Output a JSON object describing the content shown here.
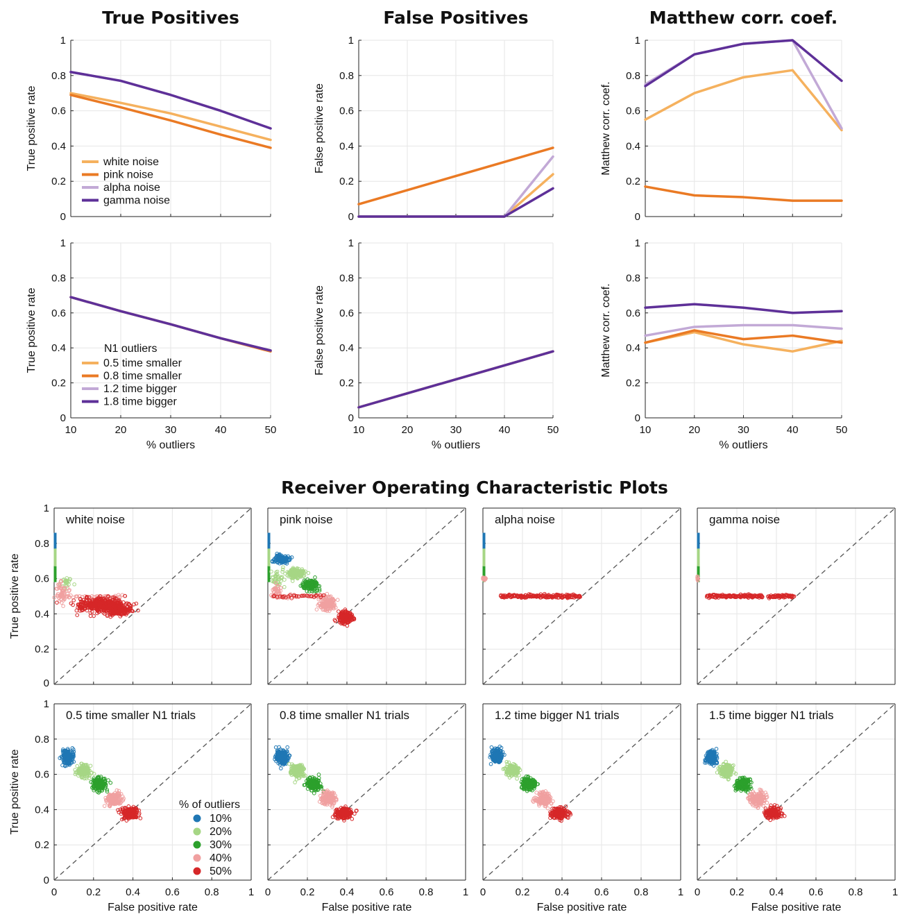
{
  "colors": {
    "white noise": "#f5b15e",
    "pink noise": "#ea7a24",
    "alpha noise": "#c2a9d6",
    "gamma noise": "#5e3098",
    "10%": "#1f77b4",
    "20%": "#a6d685",
    "30%": "#2ca02c",
    "40%": "#f0a0a0",
    "50%": "#d62728",
    "diag": "#555555"
  },
  "section_title": "Receiver Operating Characteristic Plots",
  "chart_data": [
    {
      "id": "tp-noise",
      "type": "line",
      "title": "True Positives",
      "xlabel": "",
      "ylabel": "True positive rate",
      "x": [
        10,
        20,
        30,
        40,
        50
      ],
      "xlim": [
        10,
        50
      ],
      "ylim": [
        0,
        1
      ],
      "legend_title": "",
      "series": [
        {
          "name": "white noise",
          "values": [
            0.7,
            0.645,
            0.585,
            0.51,
            0.435
          ]
        },
        {
          "name": "pink noise",
          "values": [
            0.69,
            0.62,
            0.545,
            0.465,
            0.39
          ]
        },
        {
          "name": "alpha noise",
          "values": [
            0.82,
            0.77,
            0.69,
            0.6,
            0.5
          ]
        },
        {
          "name": "gamma noise",
          "values": [
            0.82,
            0.77,
            0.69,
            0.6,
            0.5
          ]
        }
      ]
    },
    {
      "id": "fp-noise",
      "type": "line",
      "title": "False Positives",
      "xlabel": "",
      "ylabel": "False positive rate",
      "x": [
        10,
        20,
        30,
        40,
        50
      ],
      "xlim": [
        10,
        50
      ],
      "ylim": [
        0,
        1
      ],
      "series": [
        {
          "name": "white noise",
          "values": [
            0,
            0,
            0,
            0,
            0.24
          ]
        },
        {
          "name": "pink noise",
          "values": [
            0.07,
            0.15,
            0.23,
            0.31,
            0.39
          ]
        },
        {
          "name": "alpha noise",
          "values": [
            0,
            0,
            0,
            0,
            0.34
          ]
        },
        {
          "name": "gamma noise",
          "values": [
            0,
            0,
            0,
            0,
            0.16
          ]
        }
      ]
    },
    {
      "id": "mcc-noise",
      "type": "line",
      "title": "Matthew corr. coef.",
      "xlabel": "",
      "ylabel": "Matthew corr. coef.",
      "x": [
        10,
        20,
        30,
        40,
        50
      ],
      "xlim": [
        10,
        50
      ],
      "ylim": [
        0,
        1
      ],
      "series": [
        {
          "name": "white noise",
          "values": [
            0.55,
            0.7,
            0.79,
            0.83,
            0.49
          ]
        },
        {
          "name": "pink noise",
          "values": [
            0.17,
            0.12,
            0.11,
            0.09,
            0.09
          ]
        },
        {
          "name": "alpha noise",
          "values": [
            0.75,
            0.92,
            0.98,
            1.0,
            0.5
          ]
        },
        {
          "name": "gamma noise",
          "values": [
            0.74,
            0.92,
            0.98,
            1.0,
            0.77
          ]
        }
      ]
    },
    {
      "id": "tp-n1",
      "type": "line",
      "title": "",
      "xlabel": "% outliers",
      "ylabel": "True positive rate",
      "x": [
        10,
        20,
        30,
        40,
        50
      ],
      "xlim": [
        10,
        50
      ],
      "ylim": [
        0,
        1
      ],
      "legend_title": "N1 outliers",
      "series": [
        {
          "name": "0.5 time smaller",
          "values": [
            0.69,
            0.61,
            0.535,
            0.455,
            0.38
          ]
        },
        {
          "name": "0.8 time smaller",
          "values": [
            0.69,
            0.61,
            0.535,
            0.455,
            0.38
          ]
        },
        {
          "name": "1.2 time bigger",
          "values": [
            0.69,
            0.61,
            0.535,
            0.455,
            0.385
          ]
        },
        {
          "name": "1.8 time bigger",
          "values": [
            0.69,
            0.61,
            0.535,
            0.455,
            0.385
          ]
        }
      ]
    },
    {
      "id": "fp-n1",
      "type": "line",
      "title": "",
      "xlabel": "% outliers",
      "ylabel": "False positive rate",
      "x": [
        10,
        20,
        30,
        40,
        50
      ],
      "xlim": [
        10,
        50
      ],
      "ylim": [
        0,
        1
      ],
      "series": [
        {
          "name": "0.5 time smaller",
          "values": [
            0.06,
            0.14,
            0.22,
            0.3,
            0.38
          ]
        },
        {
          "name": "0.8 time smaller",
          "values": [
            0.06,
            0.14,
            0.22,
            0.3,
            0.38
          ]
        },
        {
          "name": "1.2 time bigger",
          "values": [
            0.06,
            0.14,
            0.22,
            0.3,
            0.38
          ]
        },
        {
          "name": "1.8 time bigger",
          "values": [
            0.06,
            0.14,
            0.22,
            0.3,
            0.38
          ]
        }
      ]
    },
    {
      "id": "mcc-n1",
      "type": "line",
      "title": "",
      "xlabel": "% outliers",
      "ylabel": "Matthew corr. coef.",
      "x": [
        10,
        20,
        30,
        40,
        50
      ],
      "xlim": [
        10,
        50
      ],
      "ylim": [
        0,
        1
      ],
      "series": [
        {
          "name": "0.5 time smaller",
          "values": [
            0.43,
            0.49,
            0.42,
            0.38,
            0.44
          ]
        },
        {
          "name": "0.8 time smaller",
          "values": [
            0.43,
            0.5,
            0.45,
            0.47,
            0.43
          ]
        },
        {
          "name": "1.2 time bigger",
          "values": [
            0.47,
            0.52,
            0.53,
            0.53,
            0.51
          ]
        },
        {
          "name": "1.8 time bigger",
          "values": [
            0.63,
            0.65,
            0.63,
            0.6,
            0.61
          ]
        }
      ]
    },
    {
      "id": "roc-white",
      "type": "scatter",
      "label": "white noise",
      "xlabel": "",
      "ylabel": "True positive rate",
      "xlim": [
        0,
        1
      ],
      "ylim": [
        0,
        1
      ],
      "clusters": [
        {
          "group": "10%",
          "shape": "line",
          "x": 0.0,
          "y": [
            0.77,
            0.86
          ]
        },
        {
          "group": "20%",
          "shape": "line",
          "x": 0.0,
          "y": [
            0.67,
            0.77
          ]
        },
        {
          "group": "30%",
          "shape": "line",
          "x": 0.0,
          "y": [
            0.58,
            0.67
          ]
        },
        {
          "group": "20%",
          "shape": "blob",
          "cx": 0.06,
          "cy": 0.58,
          "rx": 0.03,
          "ry": 0.04,
          "n": 22
        },
        {
          "group": "40%",
          "shape": "blob",
          "cx": 0.04,
          "cy": 0.52,
          "rx": 0.03,
          "ry": 0.06,
          "n": 60
        },
        {
          "group": "40%",
          "shape": "row",
          "x": [
            0.03,
            0.36
          ],
          "y": 0.5,
          "n": 40
        },
        {
          "group": "50%",
          "shape": "blob",
          "cx": 0.24,
          "cy": 0.45,
          "rx": 0.13,
          "ry": 0.04,
          "n": 420
        },
        {
          "group": "50%",
          "shape": "blob",
          "cx": 0.33,
          "cy": 0.42,
          "rx": 0.06,
          "ry": 0.025,
          "n": 160
        }
      ]
    },
    {
      "id": "roc-pink",
      "type": "scatter",
      "label": "pink noise",
      "xlabel": "",
      "ylabel": "",
      "xlim": [
        0,
        1
      ],
      "ylim": [
        0,
        1
      ],
      "clusters": [
        {
          "group": "10%",
          "shape": "line",
          "x": 0.0,
          "y": [
            0.77,
            0.86
          ]
        },
        {
          "group": "20%",
          "shape": "line",
          "x": 0.0,
          "y": [
            0.67,
            0.77
          ]
        },
        {
          "group": "30%",
          "shape": "line",
          "x": 0.0,
          "y": [
            0.58,
            0.67
          ]
        },
        {
          "group": "10%",
          "shape": "blob",
          "cx": 0.07,
          "cy": 0.71,
          "rx": 0.035,
          "ry": 0.025,
          "n": 130
        },
        {
          "group": "20%",
          "shape": "blob",
          "cx": 0.14,
          "cy": 0.63,
          "rx": 0.045,
          "ry": 0.03,
          "n": 140
        },
        {
          "group": "20%",
          "shape": "blob",
          "cx": 0.05,
          "cy": 0.6,
          "rx": 0.04,
          "ry": 0.04,
          "n": 40
        },
        {
          "group": "30%",
          "shape": "blob",
          "cx": 0.22,
          "cy": 0.56,
          "rx": 0.04,
          "ry": 0.03,
          "n": 140
        },
        {
          "group": "40%",
          "shape": "blob",
          "cx": 0.3,
          "cy": 0.46,
          "rx": 0.04,
          "ry": 0.035,
          "n": 150
        },
        {
          "group": "40%",
          "shape": "blob",
          "cx": 0.05,
          "cy": 0.53,
          "rx": 0.04,
          "ry": 0.04,
          "n": 40
        },
        {
          "group": "40%",
          "shape": "row",
          "x": [
            0.03,
            0.3
          ],
          "y": 0.5,
          "n": 30
        },
        {
          "group": "50%",
          "shape": "blob",
          "cx": 0.39,
          "cy": 0.38,
          "rx": 0.035,
          "ry": 0.03,
          "n": 220
        },
        {
          "group": "50%",
          "shape": "row",
          "x": [
            0.03,
            0.28
          ],
          "y": 0.5,
          "n": 28
        }
      ]
    },
    {
      "id": "roc-alpha",
      "type": "scatter",
      "label": "alpha noise",
      "xlabel": "",
      "ylabel": "",
      "xlim": [
        0,
        1
      ],
      "ylim": [
        0,
        1
      ],
      "clusters": [
        {
          "group": "10%",
          "shape": "line",
          "x": 0.0,
          "y": [
            0.77,
            0.86
          ]
        },
        {
          "group": "20%",
          "shape": "line",
          "x": 0.0,
          "y": [
            0.67,
            0.77
          ]
        },
        {
          "group": "30%",
          "shape": "line",
          "x": 0.0,
          "y": [
            0.58,
            0.67
          ]
        },
        {
          "group": "40%",
          "shape": "blob",
          "cx": 0.01,
          "cy": 0.6,
          "rx": 0.015,
          "ry": 0.008,
          "n": 14
        },
        {
          "group": "50%",
          "shape": "row",
          "x": [
            0.09,
            0.49
          ],
          "y": 0.5,
          "n": 180
        }
      ]
    },
    {
      "id": "roc-gamma",
      "type": "scatter",
      "label": "gamma noise",
      "xlabel": "",
      "ylabel": "",
      "xlim": [
        0,
        1
      ],
      "ylim": [
        0,
        1
      ],
      "clusters": [
        {
          "group": "10%",
          "shape": "line",
          "x": 0.0,
          "y": [
            0.77,
            0.86
          ]
        },
        {
          "group": "20%",
          "shape": "line",
          "x": 0.0,
          "y": [
            0.67,
            0.77
          ]
        },
        {
          "group": "30%",
          "shape": "line",
          "x": 0.0,
          "y": [
            0.58,
            0.67
          ]
        },
        {
          "group": "40%",
          "shape": "blob",
          "cx": 0.0,
          "cy": 0.6,
          "rx": 0.006,
          "ry": 0.01,
          "n": 8
        },
        {
          "group": "50%",
          "shape": "row",
          "x": [
            0.05,
            0.33
          ],
          "y": 0.5,
          "n": 130
        },
        {
          "group": "50%",
          "shape": "row",
          "x": [
            0.36,
            0.49
          ],
          "y": 0.5,
          "n": 60
        }
      ]
    },
    {
      "id": "roc-n1-05",
      "type": "scatter",
      "label": "0.5 time smaller N1 trials",
      "xlabel": "False positive rate",
      "ylabel": "True positive rate",
      "xlim": [
        0,
        1
      ],
      "ylim": [
        0,
        1
      ],
      "legend_title": "% of outliers",
      "legend": [
        "10%",
        "20%",
        "30%",
        "40%",
        "50%"
      ],
      "clusters": [
        {
          "group": "10%",
          "shape": "blob",
          "cx": 0.07,
          "cy": 0.7,
          "rx": 0.028,
          "ry": 0.04,
          "n": 180
        },
        {
          "group": "20%",
          "shape": "blob",
          "cx": 0.15,
          "cy": 0.62,
          "rx": 0.035,
          "ry": 0.035,
          "n": 180
        },
        {
          "group": "30%",
          "shape": "blob",
          "cx": 0.23,
          "cy": 0.545,
          "rx": 0.035,
          "ry": 0.035,
          "n": 180
        },
        {
          "group": "40%",
          "shape": "blob",
          "cx": 0.305,
          "cy": 0.46,
          "rx": 0.035,
          "ry": 0.035,
          "n": 180
        },
        {
          "group": "50%",
          "shape": "blob",
          "cx": 0.385,
          "cy": 0.38,
          "rx": 0.04,
          "ry": 0.03,
          "n": 200
        }
      ]
    },
    {
      "id": "roc-n1-08",
      "type": "scatter",
      "label": "0.8 time smaller N1 trials",
      "xlabel": "False positive rate",
      "ylabel": "",
      "xlim": [
        0,
        1
      ],
      "ylim": [
        0,
        1
      ],
      "clusters": [
        {
          "group": "10%",
          "shape": "blob",
          "cx": 0.07,
          "cy": 0.7,
          "rx": 0.028,
          "ry": 0.04,
          "n": 180
        },
        {
          "group": "20%",
          "shape": "blob",
          "cx": 0.15,
          "cy": 0.62,
          "rx": 0.035,
          "ry": 0.035,
          "n": 180
        },
        {
          "group": "30%",
          "shape": "blob",
          "cx": 0.23,
          "cy": 0.545,
          "rx": 0.035,
          "ry": 0.035,
          "n": 180
        },
        {
          "group": "40%",
          "shape": "blob",
          "cx": 0.305,
          "cy": 0.46,
          "rx": 0.035,
          "ry": 0.035,
          "n": 180
        },
        {
          "group": "50%",
          "shape": "blob",
          "cx": 0.385,
          "cy": 0.38,
          "rx": 0.04,
          "ry": 0.03,
          "n": 200
        }
      ]
    },
    {
      "id": "roc-n1-12",
      "type": "scatter",
      "label": "1.2 time bigger N1 trials",
      "xlabel": "False positive rate",
      "ylabel": "",
      "xlim": [
        0,
        1
      ],
      "ylim": [
        0,
        1
      ],
      "clusters": [
        {
          "group": "10%",
          "shape": "blob",
          "cx": 0.07,
          "cy": 0.7,
          "rx": 0.028,
          "ry": 0.04,
          "n": 180
        },
        {
          "group": "20%",
          "shape": "blob",
          "cx": 0.15,
          "cy": 0.62,
          "rx": 0.035,
          "ry": 0.035,
          "n": 180
        },
        {
          "group": "30%",
          "shape": "blob",
          "cx": 0.23,
          "cy": 0.545,
          "rx": 0.035,
          "ry": 0.035,
          "n": 180
        },
        {
          "group": "40%",
          "shape": "blob",
          "cx": 0.305,
          "cy": 0.46,
          "rx": 0.035,
          "ry": 0.035,
          "n": 180
        },
        {
          "group": "50%",
          "shape": "blob",
          "cx": 0.385,
          "cy": 0.38,
          "rx": 0.04,
          "ry": 0.03,
          "n": 200
        }
      ]
    },
    {
      "id": "roc-n1-15",
      "type": "scatter",
      "label": "1.5 time bigger N1 trials",
      "xlabel": "False positive rate",
      "ylabel": "",
      "xlim": [
        0,
        1
      ],
      "ylim": [
        0,
        1
      ],
      "clusters": [
        {
          "group": "10%",
          "shape": "blob",
          "cx": 0.07,
          "cy": 0.7,
          "rx": 0.028,
          "ry": 0.04,
          "n": 180
        },
        {
          "group": "20%",
          "shape": "blob",
          "cx": 0.15,
          "cy": 0.62,
          "rx": 0.035,
          "ry": 0.035,
          "n": 180
        },
        {
          "group": "30%",
          "shape": "blob",
          "cx": 0.23,
          "cy": 0.545,
          "rx": 0.035,
          "ry": 0.035,
          "n": 180
        },
        {
          "group": "40%",
          "shape": "blob",
          "cx": 0.305,
          "cy": 0.46,
          "rx": 0.035,
          "ry": 0.035,
          "n": 180
        },
        {
          "group": "50%",
          "shape": "blob",
          "cx": 0.385,
          "cy": 0.38,
          "rx": 0.04,
          "ry": 0.03,
          "n": 200
        }
      ]
    }
  ]
}
